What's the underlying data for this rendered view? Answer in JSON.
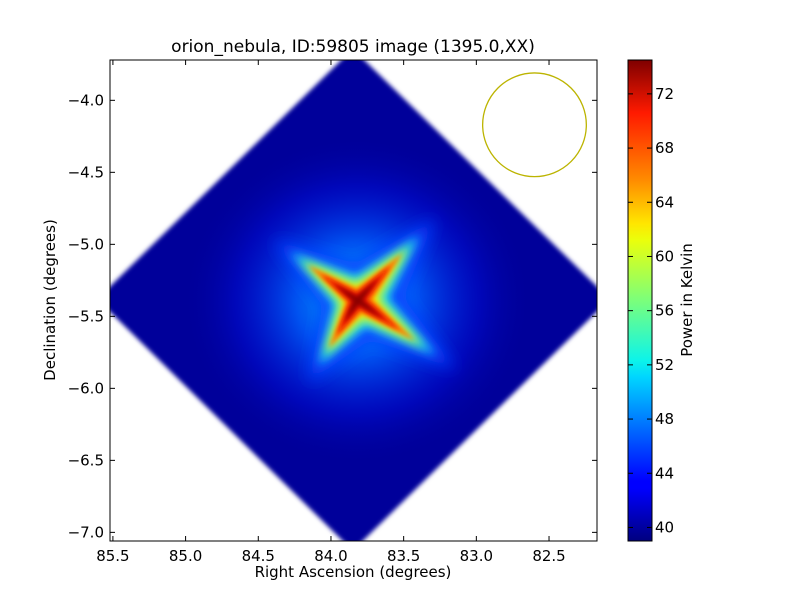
{
  "chart_data": {
    "type": "heatmap",
    "title": "orion_nebula, ID:59805 image (1395.0,XX)",
    "xlabel": "Right Ascension (degrees)",
    "ylabel": "Declination (degrees)",
    "xlim": [
      85.52,
      82.17
    ],
    "ylim": [
      -7.06,
      -3.72
    ],
    "x_ticks": [
      85.5,
      85.0,
      84.5,
      84.0,
      83.5,
      83.0,
      82.5
    ],
    "x_tick_labels": [
      "85.5",
      "85.0",
      "84.5",
      "84.0",
      "83.5",
      "83.0",
      "82.5"
    ],
    "y_ticks": [
      -4.0,
      -4.5,
      -5.0,
      -5.5,
      -6.0,
      -6.5,
      -7.0
    ],
    "y_tick_labels": [
      "−4.0",
      "−4.5",
      "−5.0",
      "−5.5",
      "−6.0",
      "−6.5",
      "−7.0"
    ],
    "colorbar": {
      "label": "Power in Kelvin",
      "range": [
        39,
        74.5
      ],
      "ticks": [
        40,
        44,
        48,
        52,
        56,
        60,
        64,
        68,
        72
      ],
      "tick_labels": [
        "40",
        "44",
        "48",
        "52",
        "56",
        "60",
        "64",
        "68",
        "72"
      ],
      "colormap": "jet"
    },
    "map": {
      "footprint_corners": [
        [
          83.85,
          -3.73
        ],
        [
          82.17,
          -5.38
        ],
        [
          83.85,
          -7.04
        ],
        [
          85.52,
          -5.38
        ]
      ],
      "background_value": 39.5,
      "peak": {
        "ra": 83.82,
        "dec": -5.39,
        "value": 74.5
      },
      "arm_ends": [
        [
          84.22,
          -5.1
        ],
        [
          83.45,
          -5.0
        ],
        [
          83.35,
          -5.72
        ],
        [
          84.05,
          -5.78
        ]
      ]
    },
    "beam": {
      "ra": 82.6,
      "dec": -4.17,
      "radius_deg": 0.36,
      "color": "#bcb400"
    }
  }
}
